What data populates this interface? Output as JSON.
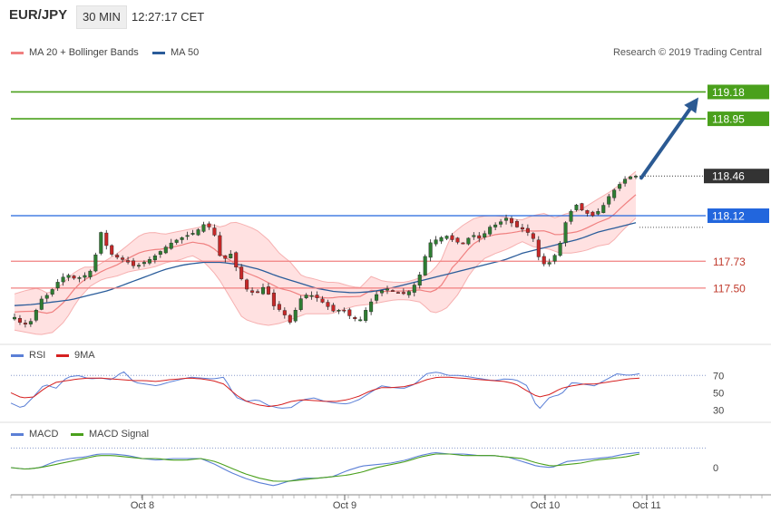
{
  "header": {
    "symbol": "EUR/JPY",
    "timeframe": "30 MIN",
    "time": "12:27:17 CET"
  },
  "legend_main": {
    "ma20": "MA 20 + Bollinger Bands",
    "ma50": "MA 50"
  },
  "legend_rsi": {
    "rsi": "RSI",
    "ma9": "9MA"
  },
  "legend_macd": {
    "macd": "MACD",
    "signal": "MACD Signal"
  },
  "copyright": "Research © 2019 Trading Central",
  "colors": {
    "ma20": "#f08080",
    "ma50": "#2a5c9a",
    "band_fill": "#ffdcdc",
    "resistance": "#4aa01c",
    "support": "#f08080",
    "pivot": "#2266dd",
    "candle_up": "#2e7d32",
    "candle_down": "#c62828",
    "rsi": "#5b7fd6",
    "ma9": "#d62020",
    "macd": "#5b7fd6",
    "macd_signal": "#4aa01c",
    "arrow": "#2b5a93"
  },
  "chart_data": [
    {
      "type": "candlestick",
      "title": "EUR/JPY",
      "x_labels": [
        "Oct 8",
        "Oct 9",
        "Oct 10",
        "Oct 11"
      ],
      "ylim": [
        117.08,
        119.3
      ],
      "levels": [
        {
          "value": 119.18,
          "label": "119.18",
          "kind": "resistance"
        },
        {
          "value": 118.95,
          "label": "118.95",
          "kind": "resistance"
        },
        {
          "value": 118.46,
          "label": "118.46",
          "kind": "last"
        },
        {
          "value": 118.12,
          "label": "118.12",
          "kind": "pivot"
        },
        {
          "value": 117.73,
          "label": "117.73",
          "kind": "support"
        },
        {
          "value": 117.5,
          "label": "117.50",
          "kind": "support"
        }
      ],
      "close_path": [
        117.25,
        117.18,
        117.22,
        117.4,
        117.45,
        117.55,
        117.62,
        117.58,
        117.6,
        117.66,
        117.98,
        117.8,
        117.76,
        117.73,
        117.68,
        117.72,
        117.76,
        117.82,
        117.88,
        117.92,
        117.95,
        117.98,
        118.05,
        118.0,
        117.72,
        117.8,
        117.62,
        117.48,
        117.45,
        117.52,
        117.35,
        117.3,
        117.2,
        117.4,
        117.45,
        117.42,
        117.36,
        117.3,
        117.32,
        117.25,
        117.22,
        117.35,
        117.45,
        117.5,
        117.47,
        117.45,
        117.48,
        117.62,
        117.88,
        117.92,
        117.95,
        117.9,
        117.88,
        117.96,
        117.92,
        118.02,
        118.05,
        118.1,
        118.03,
        118.0,
        117.95,
        117.7,
        117.72,
        117.82,
        118.1,
        118.22,
        118.15,
        118.12,
        118.18,
        118.3,
        118.38,
        118.45,
        118.46
      ],
      "bb_upper_ctrl": [
        117.45,
        117.48,
        117.5,
        117.45,
        117.52,
        117.62,
        117.68,
        117.68,
        117.74,
        117.8,
        117.88,
        117.96,
        117.98,
        117.96,
        117.98,
        118.0,
        118.02,
        118.05,
        118.02,
        118.07,
        118.04,
        118.0,
        117.92,
        117.8,
        117.72,
        117.6,
        117.58,
        117.55,
        117.55,
        117.52,
        117.5,
        117.6,
        117.56,
        117.55,
        117.55,
        117.58,
        117.62,
        117.72,
        117.96,
        118.04,
        118.1,
        118.12,
        118.12,
        118.1,
        118.08,
        118.12,
        118.14,
        118.1,
        118.14,
        118.16,
        118.22,
        118.28,
        118.34,
        118.42,
        118.5
      ],
      "bb_lower_ctrl": [
        117.14,
        117.12,
        117.1,
        117.12,
        117.22,
        117.4,
        117.52,
        117.58,
        117.6,
        117.64,
        117.66,
        117.68,
        117.72,
        117.74,
        117.78,
        117.72,
        117.6,
        117.42,
        117.24,
        117.2,
        117.18,
        117.2,
        117.24,
        117.28,
        117.28,
        117.28,
        117.32,
        117.35,
        117.36,
        117.38,
        117.4,
        117.4,
        117.38,
        117.28,
        117.32,
        117.45,
        117.64,
        117.75,
        117.8,
        117.84,
        117.9,
        117.85,
        117.84,
        117.8,
        117.8,
        117.82,
        117.86,
        117.88,
        118.0,
        118.1
      ],
      "ma50_ctrl": [
        117.35,
        117.36,
        117.38,
        117.4,
        117.44,
        117.48,
        117.54,
        117.6,
        117.66,
        117.7,
        117.72,
        117.72,
        117.7,
        117.66,
        117.6,
        117.55,
        117.5,
        117.47,
        117.46,
        117.47,
        117.5,
        117.54,
        117.58,
        117.62,
        117.66,
        117.7,
        117.74,
        117.8,
        117.84,
        117.88,
        117.92,
        117.98,
        118.02,
        118.06
      ]
    },
    {
      "type": "line",
      "title": "RSI",
      "ylim": [
        20,
        85
      ],
      "yticks": [
        70,
        50,
        30
      ],
      "series": [
        {
          "name": "RSI",
          "values": [
            38,
            32,
            45,
            60,
            55,
            68,
            70,
            66,
            67,
            65,
            75,
            62,
            60,
            58,
            62,
            65,
            68,
            67,
            66,
            68,
            45,
            40,
            42,
            35,
            32,
            33,
            42,
            44,
            40,
            38,
            37,
            42,
            50,
            58,
            56,
            55,
            60,
            72,
            74,
            70,
            70,
            68,
            66,
            64,
            66,
            65,
            58,
            30,
            45,
            48,
            62,
            60,
            58,
            65,
            72,
            70,
            72
          ]
        },
        {
          "name": "9MA",
          "values": [
            50,
            44,
            45,
            55,
            62,
            64,
            66,
            67,
            67,
            66,
            65,
            64,
            64,
            63,
            65,
            66,
            67,
            66,
            64,
            60,
            48,
            40,
            36,
            34,
            36,
            40,
            42,
            41,
            40,
            40,
            42,
            46,
            52,
            56,
            56,
            57,
            60,
            65,
            68,
            68,
            67,
            66,
            65,
            64,
            63,
            60,
            52,
            45,
            48,
            55,
            58,
            60,
            60,
            62,
            64,
            66,
            67
          ]
        }
      ]
    },
    {
      "type": "line",
      "title": "MACD",
      "ylim": [
        -0.18,
        0.18
      ],
      "yticks": [
        0
      ],
      "series": [
        {
          "name": "MACD",
          "values": [
            0.0,
            -0.01,
            0.0,
            0.04,
            0.06,
            0.07,
            0.09,
            0.09,
            0.08,
            0.06,
            0.05,
            0.06,
            0.06,
            0.06,
            0.02,
            -0.03,
            -0.07,
            -0.1,
            -0.12,
            -0.09,
            -0.07,
            -0.07,
            -0.06,
            -0.02,
            0.01,
            0.02,
            0.03,
            0.05,
            0.08,
            0.1,
            0.09,
            0.09,
            0.08,
            0.08,
            0.07,
            0.04,
            0.01,
            0.0,
            0.04,
            0.05,
            0.06,
            0.07,
            0.09,
            0.1
          ]
        },
        {
          "name": "MACD Signal",
          "values": [
            0.0,
            -0.01,
            0.0,
            0.02,
            0.04,
            0.06,
            0.08,
            0.08,
            0.07,
            0.06,
            0.06,
            0.05,
            0.05,
            0.06,
            0.04,
            0.0,
            -0.04,
            -0.07,
            -0.09,
            -0.09,
            -0.08,
            -0.07,
            -0.06,
            -0.05,
            -0.03,
            0.0,
            0.02,
            0.04,
            0.07,
            0.09,
            0.09,
            0.08,
            0.08,
            0.08,
            0.07,
            0.06,
            0.03,
            0.01,
            0.02,
            0.03,
            0.05,
            0.06,
            0.07,
            0.09
          ]
        }
      ]
    }
  ]
}
